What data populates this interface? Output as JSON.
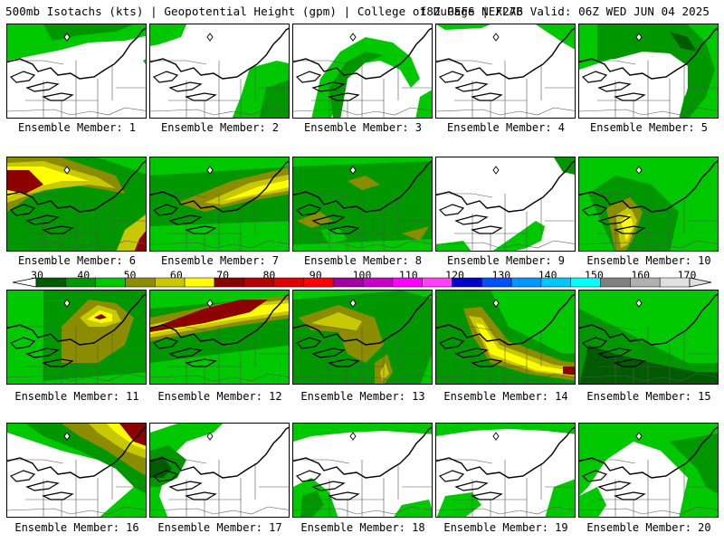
{
  "header": {
    "left": "500mb Isotachs (kts) | Geopotential Height (gpm) | College of DuPage NEXLAB",
    "right": "18Z GEFS | F276 Valid: 06Z WED JUN 04 2025"
  },
  "members": [
    {
      "label": "Ensemble Member: 1"
    },
    {
      "label": "Ensemble Member: 2"
    },
    {
      "label": "Ensemble Member: 3"
    },
    {
      "label": "Ensemble Member: 4"
    },
    {
      "label": "Ensemble Member: 5"
    },
    {
      "label": "Ensemble Member: 6"
    },
    {
      "label": "Ensemble Member: 7"
    },
    {
      "label": "Ensemble Member: 8"
    },
    {
      "label": "Ensemble Member: 9"
    },
    {
      "label": "Ensemble Member: 10"
    },
    {
      "label": "Ensemble Member: 11"
    },
    {
      "label": "Ensemble Member: 12"
    },
    {
      "label": "Ensemble Member: 13"
    },
    {
      "label": "Ensemble Member: 14"
    },
    {
      "label": "Ensemble Member: 15"
    },
    {
      "label": "Ensemble Member: 16"
    },
    {
      "label": "Ensemble Member: 17"
    },
    {
      "label": "Ensemble Member: 18"
    },
    {
      "label": "Ensemble Member: 19"
    },
    {
      "label": "Ensemble Member: 20"
    }
  ],
  "colorbar": {
    "labels": [
      "30",
      "40",
      "50",
      "60",
      "70",
      "80",
      "90",
      "100",
      "110",
      "120",
      "130",
      "140",
      "150",
      "160",
      "170"
    ],
    "colors": [
      "#005a00",
      "#009600",
      "#00c800",
      "#8c8c00",
      "#c8c800",
      "#ffff00",
      "#8c0000",
      "#b40000",
      "#e10000",
      "#ff0000",
      "#a000a0",
      "#c800c8",
      "#ff00ff",
      "#ff40ff",
      "#0000c8",
      "#0050ff",
      "#0096ff",
      "#00c8ff",
      "#00ffff",
      "#808080",
      "#b0b0b0",
      "#e0e0e0"
    ]
  }
}
